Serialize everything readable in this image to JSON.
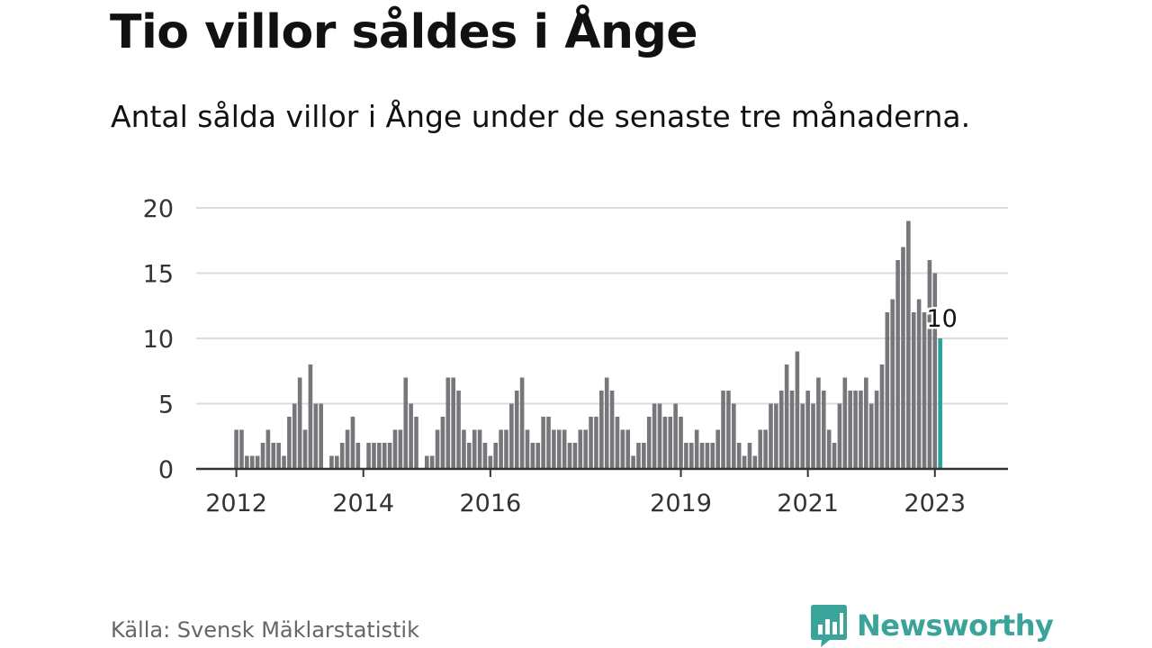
{
  "title": "Tio villor såldes i Ånge",
  "subtitle": "Antal sålda villor i Ånge under de senaste tre månaderna.",
  "source": "Källa: Svensk Mäklarstatistik",
  "brand": {
    "name": "Newsworthy",
    "icon": "newsworthy-logo-icon",
    "color": "#3aa39a"
  },
  "colors": {
    "bar": "#77767b",
    "highlight": "#26a39a",
    "grid": "#dcdcdc",
    "axis": "#333333"
  },
  "chart_data": {
    "type": "bar",
    "title": "Tio villor såldes i Ånge",
    "xlabel": "",
    "ylabel": "",
    "ylim": [
      0,
      20
    ],
    "yticks": [
      "0",
      "5",
      "10",
      "15",
      "20"
    ],
    "grid": true,
    "x_tick_labels": [
      "2012",
      "2014",
      "2016",
      "2019",
      "2021",
      "2023"
    ],
    "start": "2012-01",
    "end": "2023-02",
    "highlight_last": true,
    "highlight_label": "10",
    "values": [
      3,
      3,
      1,
      1,
      1,
      2,
      3,
      2,
      2,
      1,
      4,
      5,
      7,
      3,
      8,
      5,
      5,
      0,
      1,
      1,
      2,
      3,
      4,
      2,
      0,
      2,
      2,
      2,
      2,
      2,
      3,
      3,
      7,
      5,
      4,
      0,
      1,
      1,
      3,
      4,
      7,
      7,
      6,
      3,
      2,
      3,
      3,
      2,
      1,
      2,
      3,
      3,
      5,
      6,
      7,
      3,
      2,
      2,
      4,
      4,
      3,
      3,
      3,
      2,
      2,
      3,
      3,
      4,
      4,
      6,
      7,
      6,
      4,
      3,
      3,
      1,
      2,
      2,
      4,
      5,
      5,
      4,
      4,
      5,
      4,
      2,
      2,
      3,
      2,
      2,
      2,
      3,
      6,
      6,
      5,
      2,
      1,
      2,
      1,
      3,
      3,
      5,
      5,
      6,
      8,
      6,
      9,
      5,
      6,
      5,
      7,
      6,
      3,
      2,
      5,
      7,
      6,
      6,
      6,
      7,
      5,
      6,
      8,
      12,
      13,
      16,
      17,
      19,
      12,
      13,
      12,
      16,
      15,
      10
    ]
  }
}
